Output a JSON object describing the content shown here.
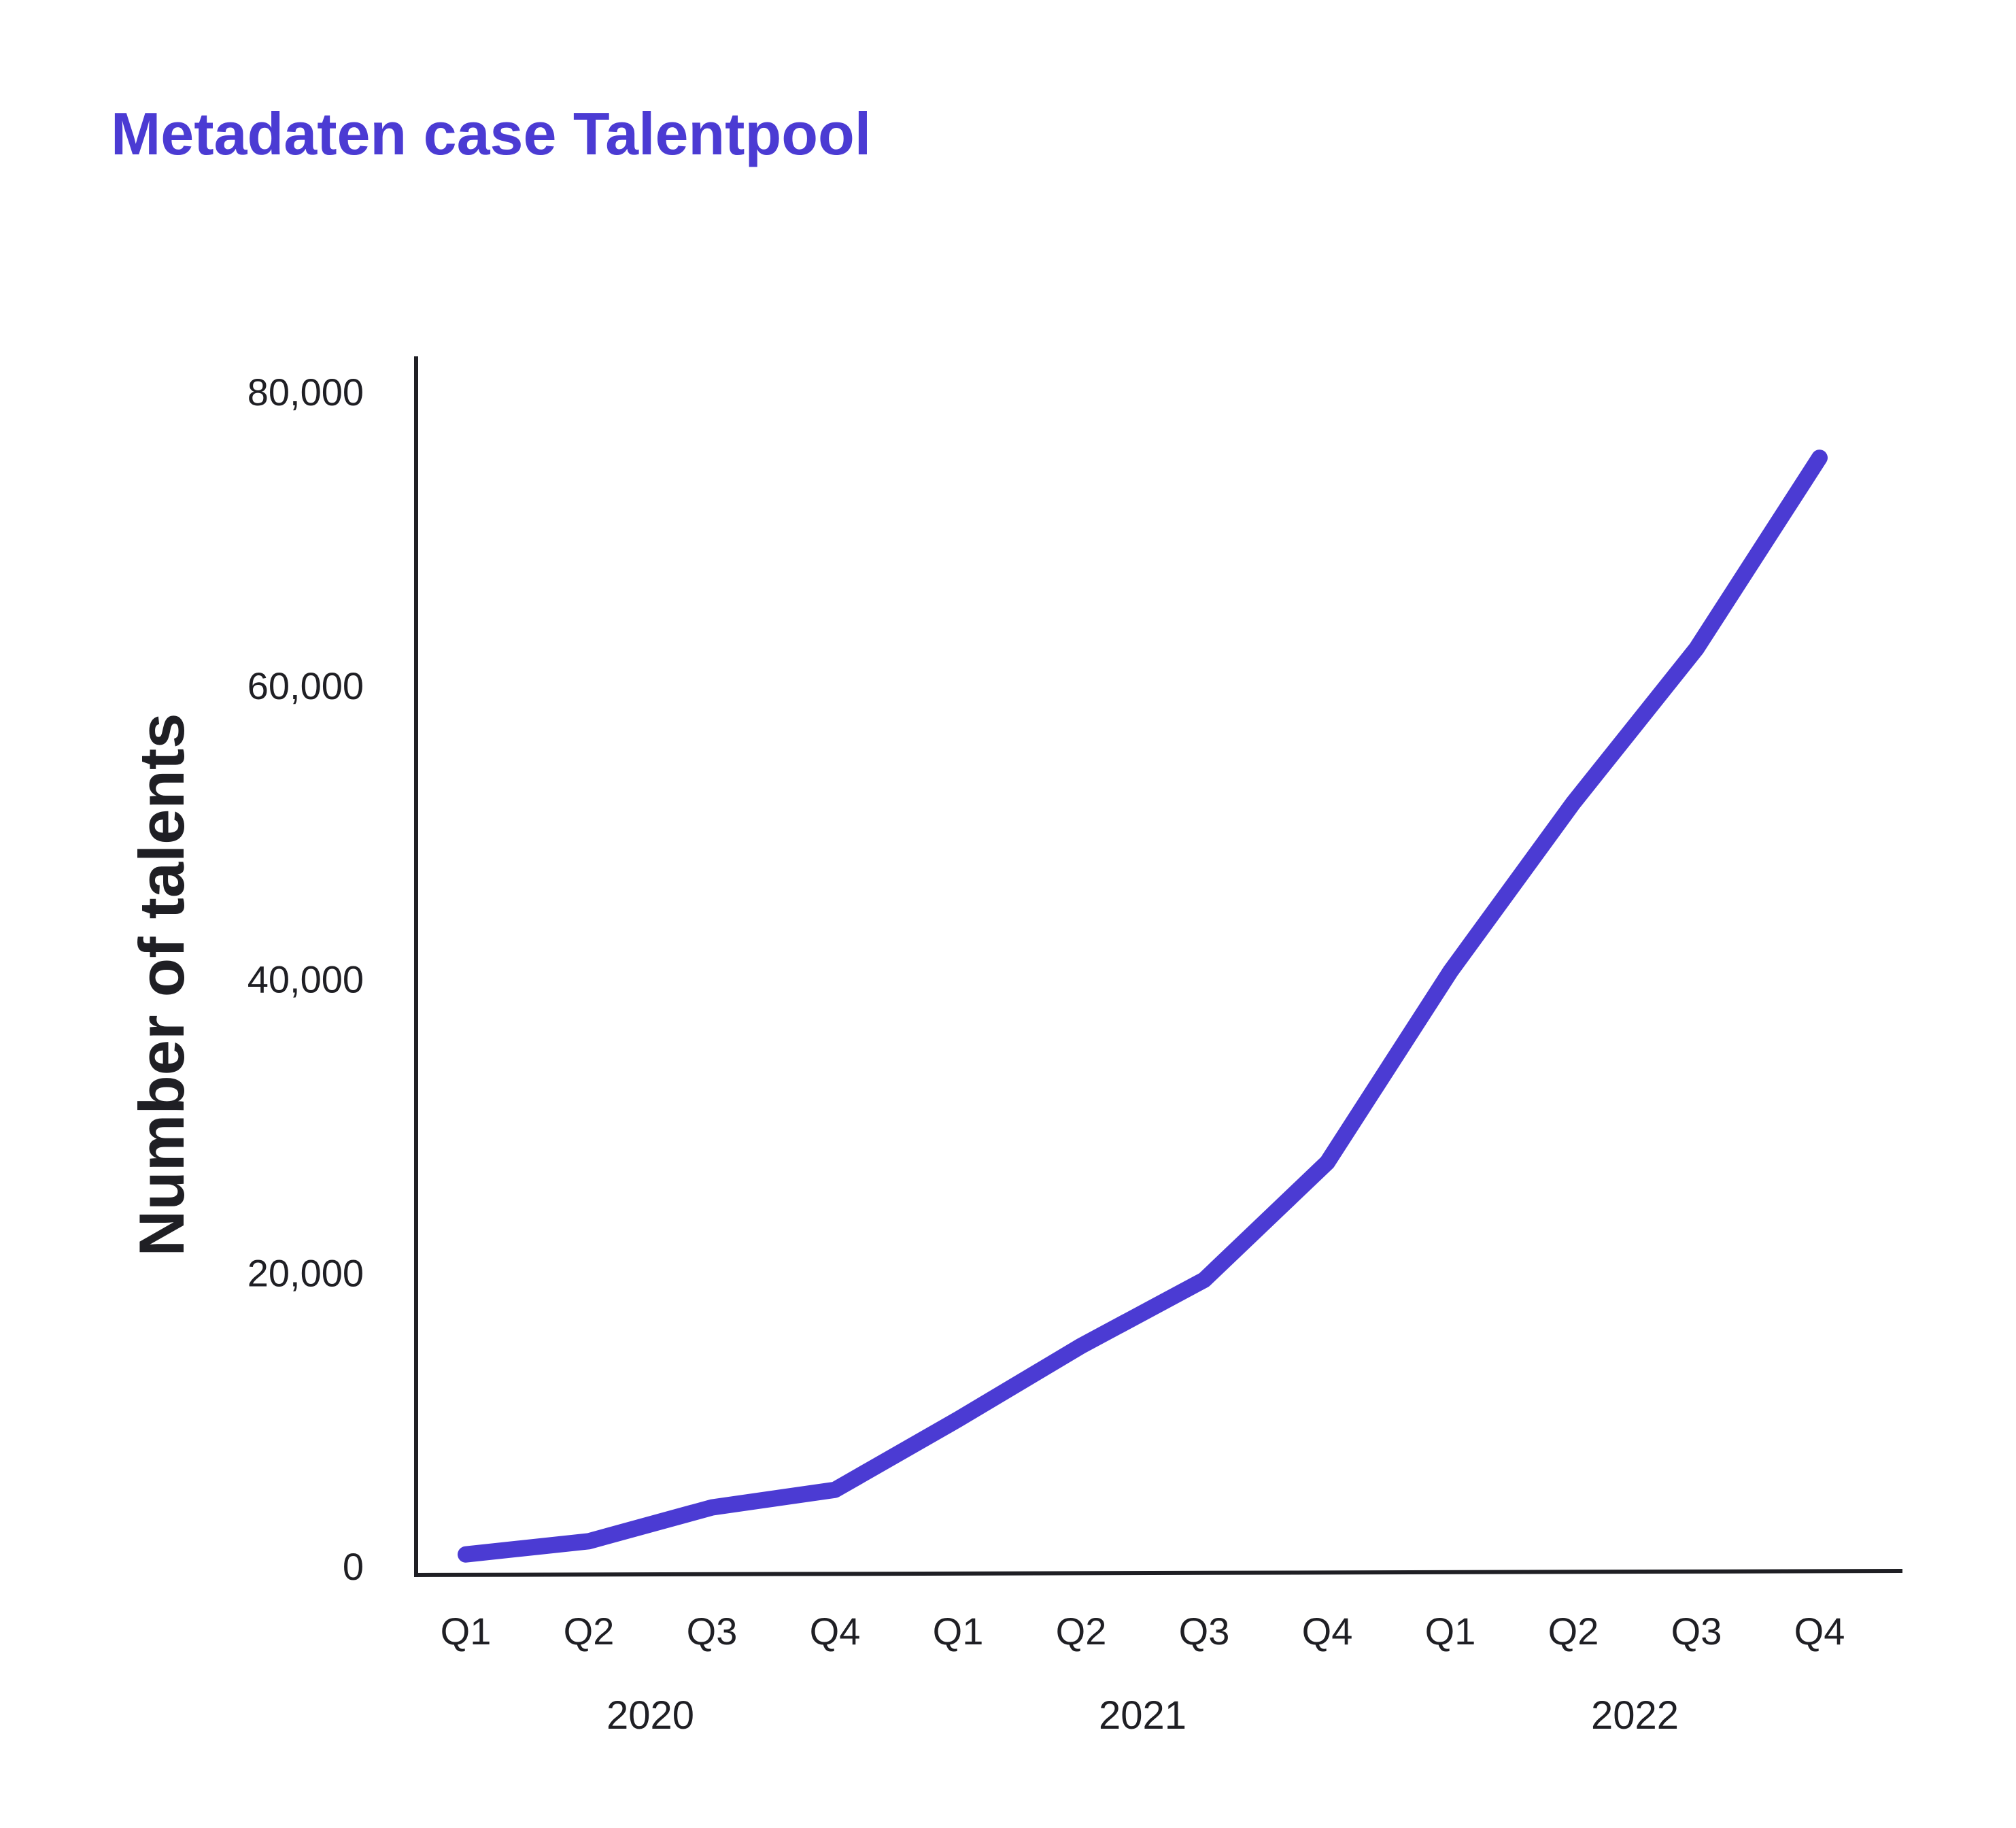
{
  "colors": {
    "accent": "#4b3bd3",
    "axis": "#1f1f24",
    "text": "#1f1f24",
    "background": "#ffffff"
  },
  "chart_data": {
    "type": "line",
    "title": "Metadaten case Talentpool",
    "ylabel": "Number of talents",
    "xlabel": "",
    "ylim": [
      0,
      80000
    ],
    "yticks": [
      "0",
      "20,000",
      "40,000",
      "60,000",
      "80,000"
    ],
    "ytick_values": [
      0,
      20000,
      40000,
      60000,
      80000
    ],
    "categories": [
      "Q1",
      "Q2",
      "Q3",
      "Q4",
      "Q1",
      "Q2",
      "Q3",
      "Q4",
      "Q1",
      "Q2",
      "Q3",
      "Q4"
    ],
    "year_groups": [
      {
        "label": "2020",
        "span": [
          0,
          3
        ]
      },
      {
        "label": "2021",
        "span": [
          4,
          7
        ]
      },
      {
        "label": "2022",
        "span": [
          8,
          11
        ]
      }
    ],
    "series": [
      {
        "values": [
          800,
          1700,
          4000,
          5200,
          10000,
          15000,
          19500,
          27500,
          40500,
          52000,
          62500,
          75500
        ]
      }
    ],
    "grid": false,
    "legend": "none"
  }
}
